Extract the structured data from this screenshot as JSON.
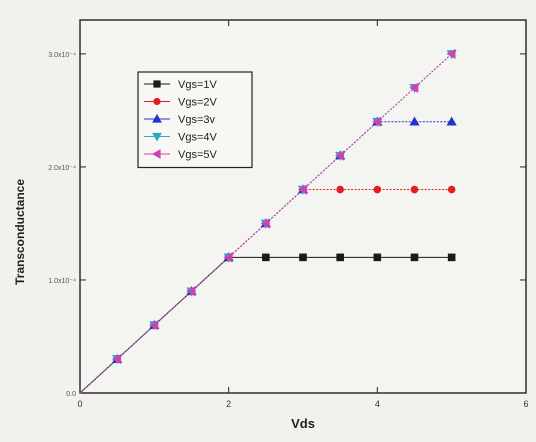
{
  "chart_data": {
    "type": "line",
    "xlabel": "Vds",
    "ylabel": "Transconductance",
    "xlim": [
      0,
      6
    ],
    "ylim": [
      0,
      0.00033
    ],
    "grid": false,
    "legend_position": "top-left",
    "x_ticks": [
      {
        "value": 0,
        "label": "0"
      },
      {
        "value": 2,
        "label": "2"
      },
      {
        "value": 4,
        "label": "4"
      },
      {
        "value": 6,
        "label": "6"
      }
    ],
    "y_ticks": [
      {
        "value": 0,
        "label": "0.0"
      },
      {
        "value": 0.0001,
        "label": "1.0x10⁻⁴"
      },
      {
        "value": 0.0002,
        "label": "2.0x10⁻⁴"
      },
      {
        "value": 0.0003,
        "label": "3.0x10⁻⁴"
      }
    ],
    "series": [
      {
        "name": "Vgs=1V",
        "color": "#1a1a1a",
        "marker": "square",
        "x": [
          0,
          0.5,
          1,
          1.5,
          2,
          2.5,
          3,
          3.5,
          4,
          4.5,
          5
        ],
        "y": [
          0,
          3e-05,
          6e-05,
          9e-05,
          0.00012,
          0.00012,
          0.00012,
          0.00012,
          0.00012,
          0.00012,
          0.00012
        ]
      },
      {
        "name": "Vgs=2V",
        "color": "#e02020",
        "marker": "circle",
        "x": [
          0,
          0.5,
          1,
          1.5,
          2,
          2.5,
          3,
          3.5,
          4,
          4.5,
          5
        ],
        "y": [
          0,
          3e-05,
          6e-05,
          9e-05,
          0.00012,
          0.00015,
          0.00018,
          0.00018,
          0.00018,
          0.00018,
          0.00018
        ]
      },
      {
        "name": "Vgs=3v",
        "color": "#2233cc",
        "marker": "triangle-up",
        "x": [
          0,
          0.5,
          1,
          1.5,
          2,
          2.5,
          3,
          3.5,
          4,
          4.5,
          5
        ],
        "y": [
          0,
          3e-05,
          6e-05,
          9e-05,
          0.00012,
          0.00015,
          0.00018,
          0.00021,
          0.00024,
          0.00024,
          0.00024
        ]
      },
      {
        "name": "Vgs=4V",
        "color": "#2aa8c8",
        "marker": "triangle-down",
        "x": [
          0,
          0.5,
          1,
          1.5,
          2,
          2.5,
          3,
          3.5,
          4,
          4.5,
          5
        ],
        "y": [
          0,
          3e-05,
          6e-05,
          9e-05,
          0.00012,
          0.00015,
          0.00018,
          0.00021,
          0.00024,
          0.00027,
          0.0003
        ]
      },
      {
        "name": "Vgs=5V",
        "color": "#d040b0",
        "marker": "triangle-left",
        "x": [
          0,
          0.5,
          1,
          1.5,
          2,
          2.5,
          3,
          3.5,
          4,
          4.5,
          5
        ],
        "y": [
          0,
          3e-05,
          6e-05,
          9e-05,
          0.00012,
          0.00015,
          0.00018,
          0.00021,
          0.00024,
          0.00027,
          0.0003
        ]
      }
    ]
  }
}
